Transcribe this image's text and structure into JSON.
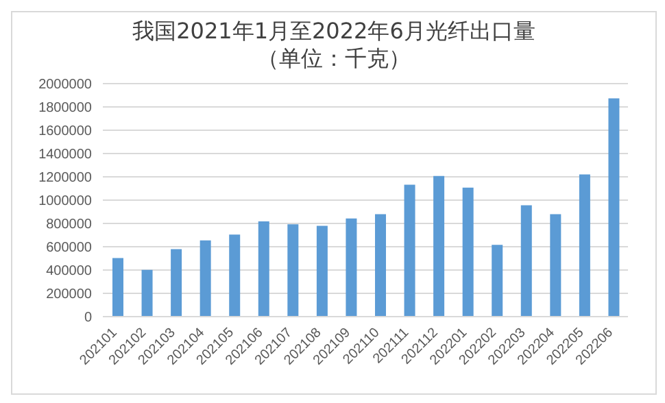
{
  "chart_data": {
    "type": "bar",
    "title": "我国2021年1月至2022年6月光纤出口量",
    "subtitle": "（单位：千克）",
    "categories": [
      "202101",
      "202102",
      "202103",
      "202104",
      "202105",
      "202106",
      "202107",
      "202108",
      "202109",
      "202110",
      "202111",
      "202112",
      "202201",
      "202202",
      "202203",
      "202204",
      "202205",
      "202206"
    ],
    "values": [
      503000,
      402000,
      579000,
      654000,
      704000,
      818000,
      792000,
      780000,
      843000,
      880000,
      1132000,
      1208000,
      1107000,
      616000,
      956000,
      880000,
      1220000,
      1874000
    ],
    "color": "#5b9bd5",
    "ylim": [
      0,
      2000000
    ],
    "yticks": [
      0,
      200000,
      400000,
      600000,
      800000,
      1000000,
      1200000,
      1400000,
      1600000,
      1800000,
      2000000
    ],
    "grid": "y",
    "legend": false
  }
}
